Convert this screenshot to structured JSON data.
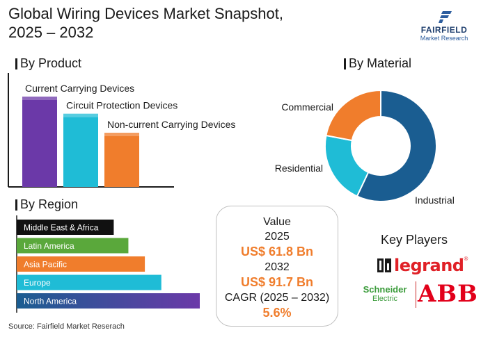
{
  "header": {
    "title_line1": "Global Wiring Devices Market Snapshot,",
    "title_line2": "2025 – 2032"
  },
  "logo": {
    "brand": "FAIRFIELD",
    "sub": "Market Research",
    "icon": "fairfield-f-icon"
  },
  "colors": {
    "purple": "#6b39a8",
    "cyan": "#1fbcd6",
    "orange": "#f07d2c",
    "navy": "#1a5d91",
    "green": "#5aa83b",
    "black": "#111111"
  },
  "value_box": {
    "label": "Value",
    "year1": "2025",
    "value1": "US$ 61.8 Bn",
    "year2": "2032",
    "value2": "US$ 91.7 Bn",
    "cagr_label": "CAGR (2025 – 2032)",
    "cagr_value": "5.6%"
  },
  "key_players": {
    "title": "Key Players",
    "legrand": "legrand",
    "legrand_reg": "®",
    "schneider_line1": "Schneider",
    "schneider_line2": "Electric",
    "abb": "ABB"
  },
  "source": "Source: Fairfield Market Reserach",
  "chart_data": [
    {
      "type": "bar",
      "title": "By Product",
      "categories": [
        "Current Carrying Devices",
        "Circuit Protection Devices",
        "Non-current Carrying Devices"
      ],
      "values": [
        100,
        81,
        60
      ],
      "colors": [
        "#6b39a8",
        "#1fbcd6",
        "#f07d2c"
      ]
    },
    {
      "type": "bar",
      "orientation": "horizontal",
      "title": "By Region",
      "categories": [
        "Middle East & Africa",
        "Latin America",
        "Asia Pacific",
        "Europe",
        "North America"
      ],
      "values": [
        53,
        61,
        70,
        79,
        100
      ],
      "colors": [
        "#111111",
        "#5aa83b",
        "#f07d2c",
        "#1fbcd6",
        "#1a5d91"
      ]
    },
    {
      "type": "pie",
      "donut": true,
      "title": "By Material",
      "categories": [
        "Industrial",
        "Residential",
        "Commercial"
      ],
      "values": [
        57,
        21,
        22
      ],
      "colors": [
        "#1a5d91",
        "#1fbcd6",
        "#f07d2c"
      ]
    }
  ]
}
